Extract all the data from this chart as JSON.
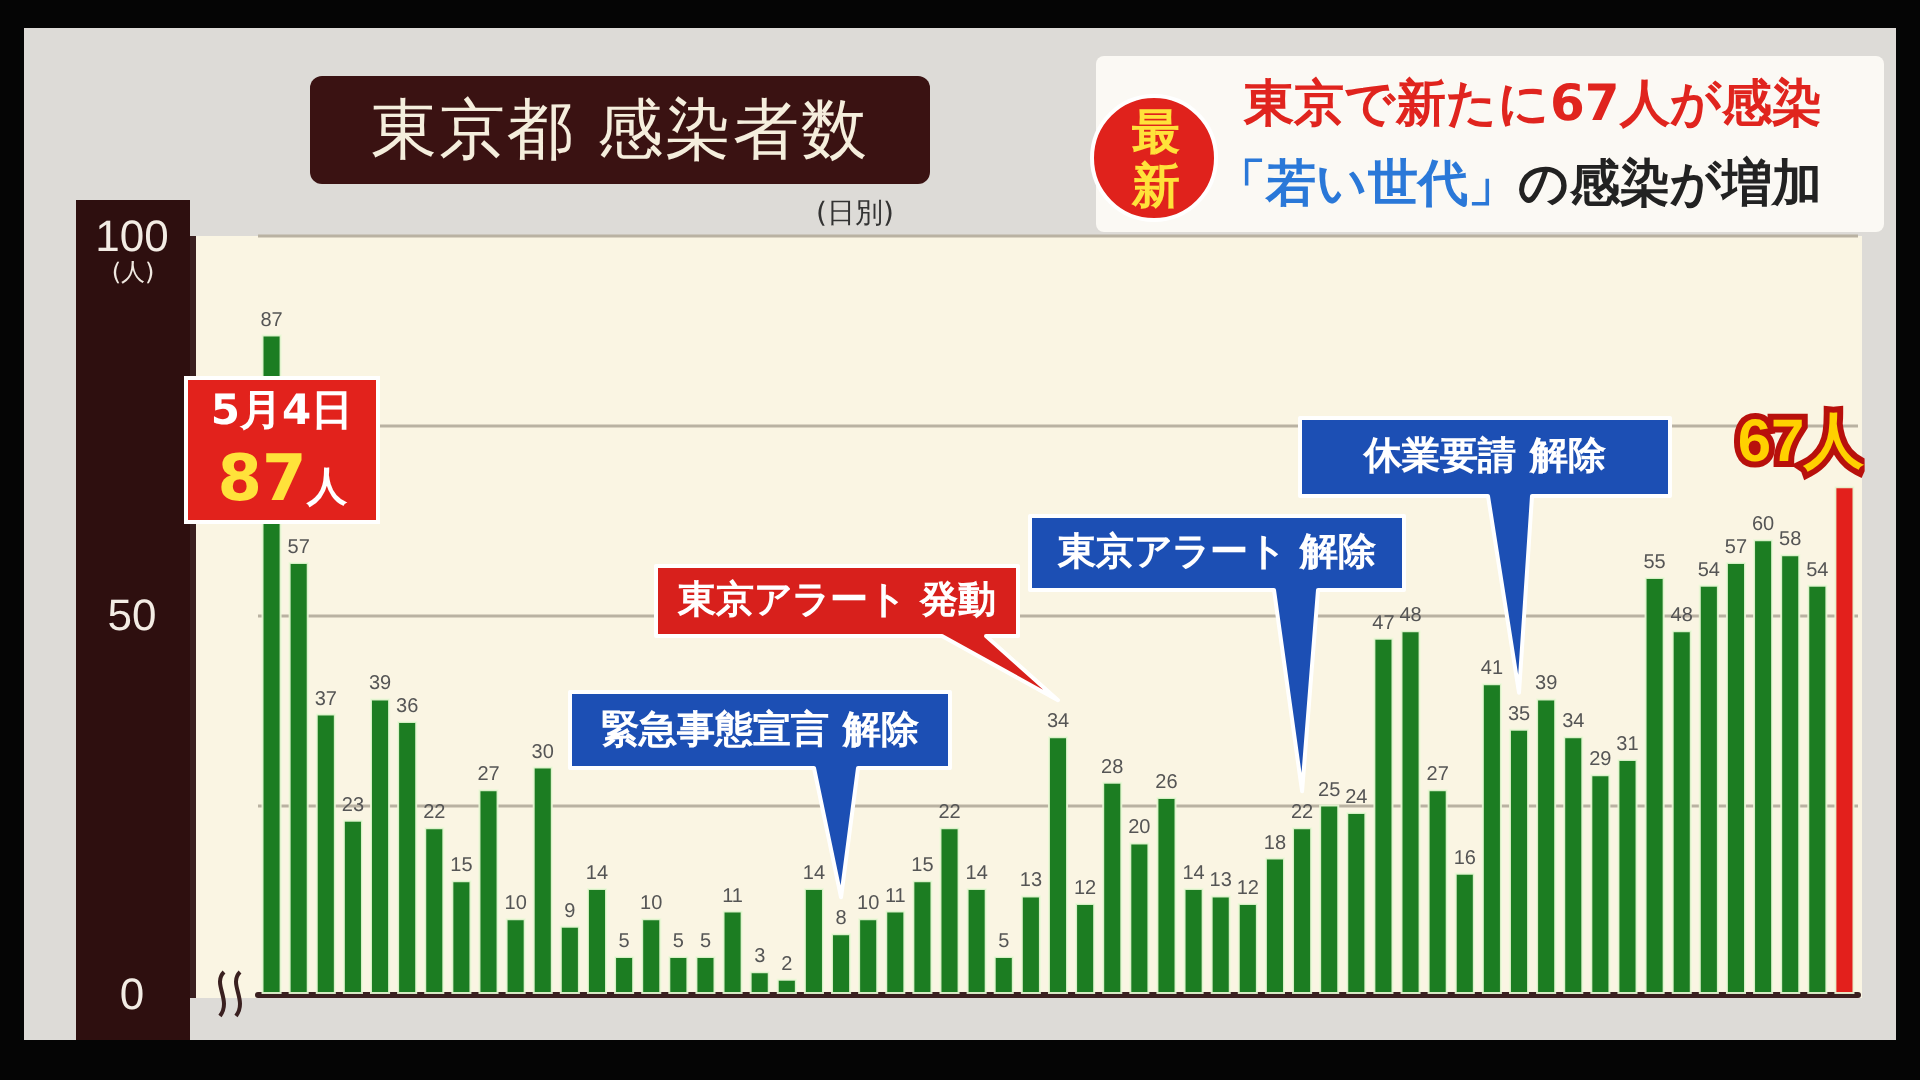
{
  "chart_data": {
    "type": "bar",
    "title": "東京都 感染者数",
    "subtitle": "(日別)",
    "ylabel": "(人)",
    "categories": [
      null,
      null,
      null,
      null,
      null,
      null,
      null,
      null,
      null,
      null,
      null,
      null,
      null,
      null,
      null,
      null,
      null,
      null,
      null,
      null,
      null,
      null,
      null,
      null,
      null,
      null,
      null,
      null,
      null,
      null,
      null,
      null,
      null,
      null,
      null,
      null,
      null,
      null,
      null,
      null,
      null,
      null,
      null,
      null,
      null,
      null,
      null,
      null,
      null,
      null,
      null,
      null,
      null,
      null,
      null,
      null,
      null,
      null,
      null
    ],
    "values": [
      87,
      57,
      37,
      23,
      39,
      36,
      22,
      15,
      27,
      10,
      30,
      9,
      14,
      5,
      10,
      5,
      5,
      11,
      3,
      2,
      14,
      8,
      10,
      11,
      15,
      22,
      14,
      5,
      13,
      34,
      12,
      28,
      20,
      26,
      14,
      13,
      12,
      18,
      22,
      25,
      24,
      47,
      48,
      27,
      16,
      41,
      35,
      39,
      34,
      29,
      31,
      55,
      48,
      54,
      57,
      60,
      58,
      54,
      67
    ],
    "colors": [
      "#1c7d22",
      "#1c7d22",
      "#1c7d22",
      "#1c7d22",
      "#1c7d22",
      "#1c7d22",
      "#1c7d22",
      "#1c7d22",
      "#1c7d22",
      "#1c7d22",
      "#1c7d22",
      "#1c7d22",
      "#1c7d22",
      "#1c7d22",
      "#1c7d22",
      "#1c7d22",
      "#1c7d22",
      "#1c7d22",
      "#1c7d22",
      "#1c7d22",
      "#1c7d22",
      "#1c7d22",
      "#1c7d22",
      "#1c7d22",
      "#1c7d22",
      "#1c7d22",
      "#1c7d22",
      "#1c7d22",
      "#1c7d22",
      "#1c7d22",
      "#1c7d22",
      "#1c7d22",
      "#1c7d22",
      "#1c7d22",
      "#1c7d22",
      "#1c7d22",
      "#1c7d22",
      "#1c7d22",
      "#1c7d22",
      "#1c7d22",
      "#1c7d22",
      "#1c7d22",
      "#1c7d22",
      "#1c7d22",
      "#1c7d22",
      "#1c7d22",
      "#1c7d22",
      "#1c7d22",
      "#1c7d22",
      "#1c7d22",
      "#1c7d22",
      "#1c7d22",
      "#1c7d22",
      "#1c7d22",
      "#1c7d22",
      "#1c7d22",
      "#1c7d22",
      "#1c7d22",
      "#e3201c"
    ],
    "value_labels": [
      "87",
      "57",
      "37",
      "23",
      "39",
      "36",
      "22",
      "15",
      "27",
      "10",
      "30",
      "9",
      "14",
      "5",
      "10",
      "5",
      "5",
      "11",
      "3",
      "2",
      "14",
      "8",
      "10",
      "11",
      "15",
      "22",
      "14",
      "5",
      "13",
      "34",
      "12",
      "28",
      "20",
      "26",
      "14",
      "13",
      "12",
      "18",
      "22",
      "25",
      "24",
      "47",
      "48",
      "27",
      "16",
      "41",
      "35",
      "39",
      "34",
      "29",
      "31",
      "55",
      "48",
      "54",
      "57",
      "60",
      "58",
      "54",
      "67人"
    ],
    "ylim": [
      0,
      100
    ],
    "yticks": [
      0,
      {
        "value": 25,
        "label": null
      },
      50,
      {
        "value": 75,
        "label": null
      },
      100
    ],
    "grid": "y",
    "tick_labels": "y",
    "annotations": [
      "5月4日 87人",
      "緊急事態宣言 解除",
      "東京アラート 発動",
      "東京アラート 解除",
      "休業要請 解除",
      "最新",
      "東京で新たに67人が感染",
      "「若い世代」の感染が増加"
    ]
  }
}
